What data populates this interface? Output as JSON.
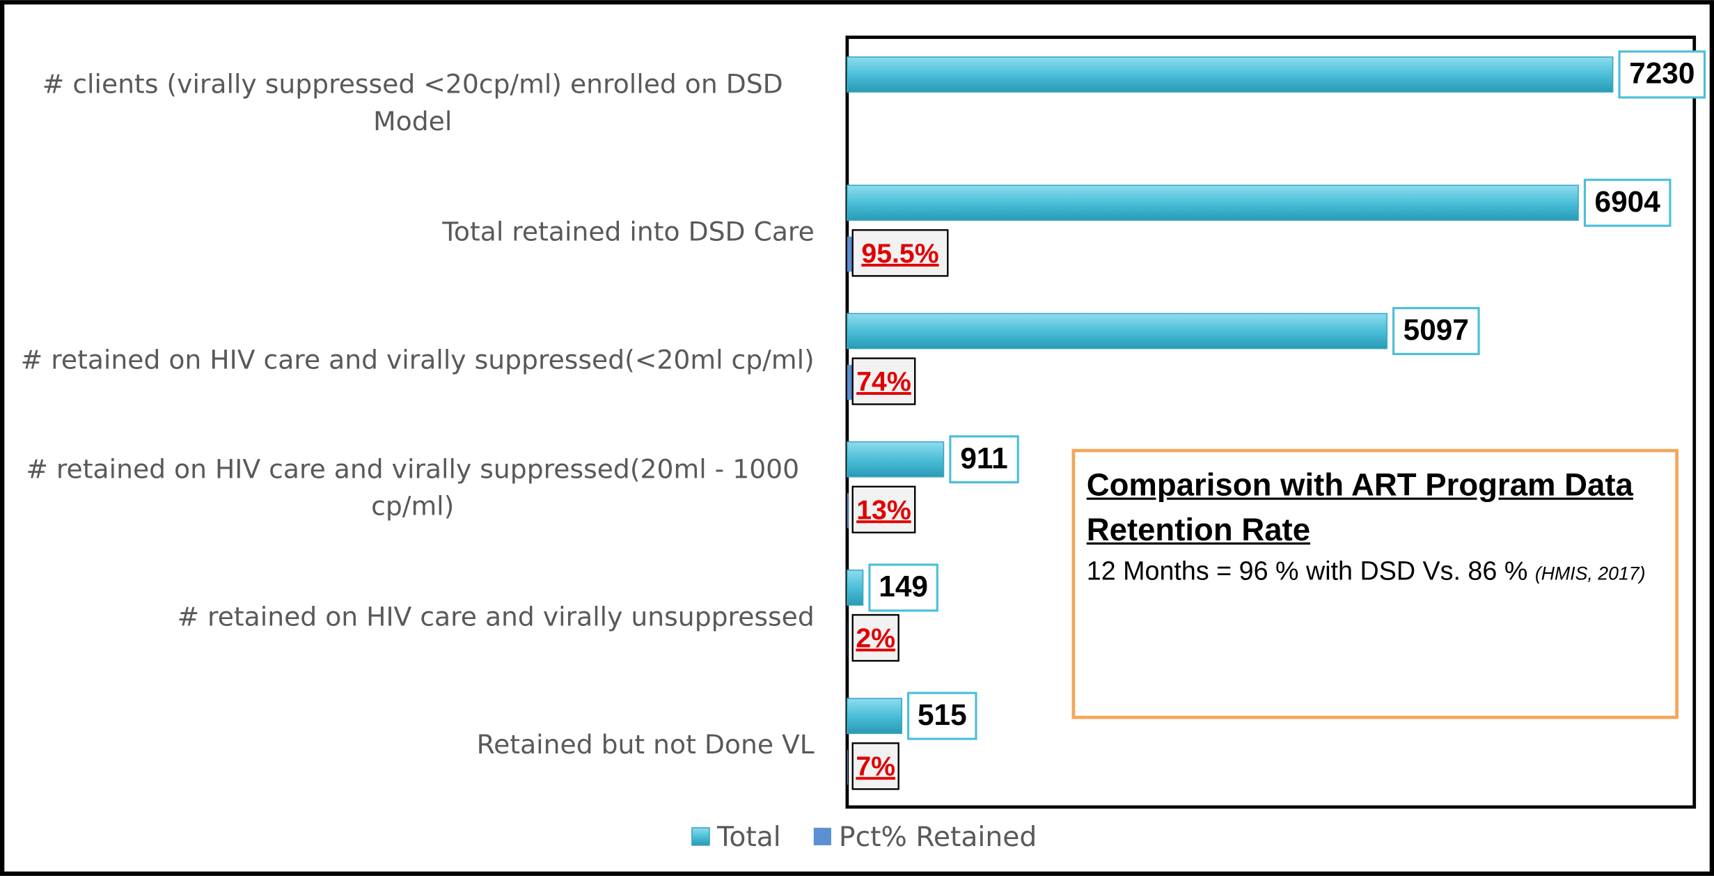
{
  "chart_data": {
    "type": "bar",
    "orientation": "horizontal",
    "categories": [
      "# clients (virally suppressed <20cp/ml) enrolled on DSD Model",
      "Total retained into DSD Care",
      "# retained on HIV care and virally suppressed(<20ml cp/ml)",
      "# retained on HIV care and virally suppressed(20ml - 1000 cp/ml)",
      "# retained on HIV care and virally unsuppressed",
      "Retained but not Done VL"
    ],
    "series": [
      {
        "name": "Total",
        "color": "#4bbfd9",
        "values": [
          7230,
          6904,
          5097,
          911,
          149,
          515
        ]
      },
      {
        "name": "Pct% Retained",
        "color": "#5b8fd1",
        "values": [
          null,
          95.5,
          74,
          13,
          2,
          7
        ],
        "value_labels": [
          null,
          "95.5%",
          "74%",
          "13%",
          "2%",
          "7%"
        ]
      }
    ],
    "xlim": [
      0,
      8000
    ],
    "legend": "bottom",
    "annotation": {
      "title": "Comparison with ART Program Data Retention Rate",
      "text": "12 Months = 96 % with DSD Vs. 86 %",
      "note": "(HMIS, 2017)"
    }
  }
}
